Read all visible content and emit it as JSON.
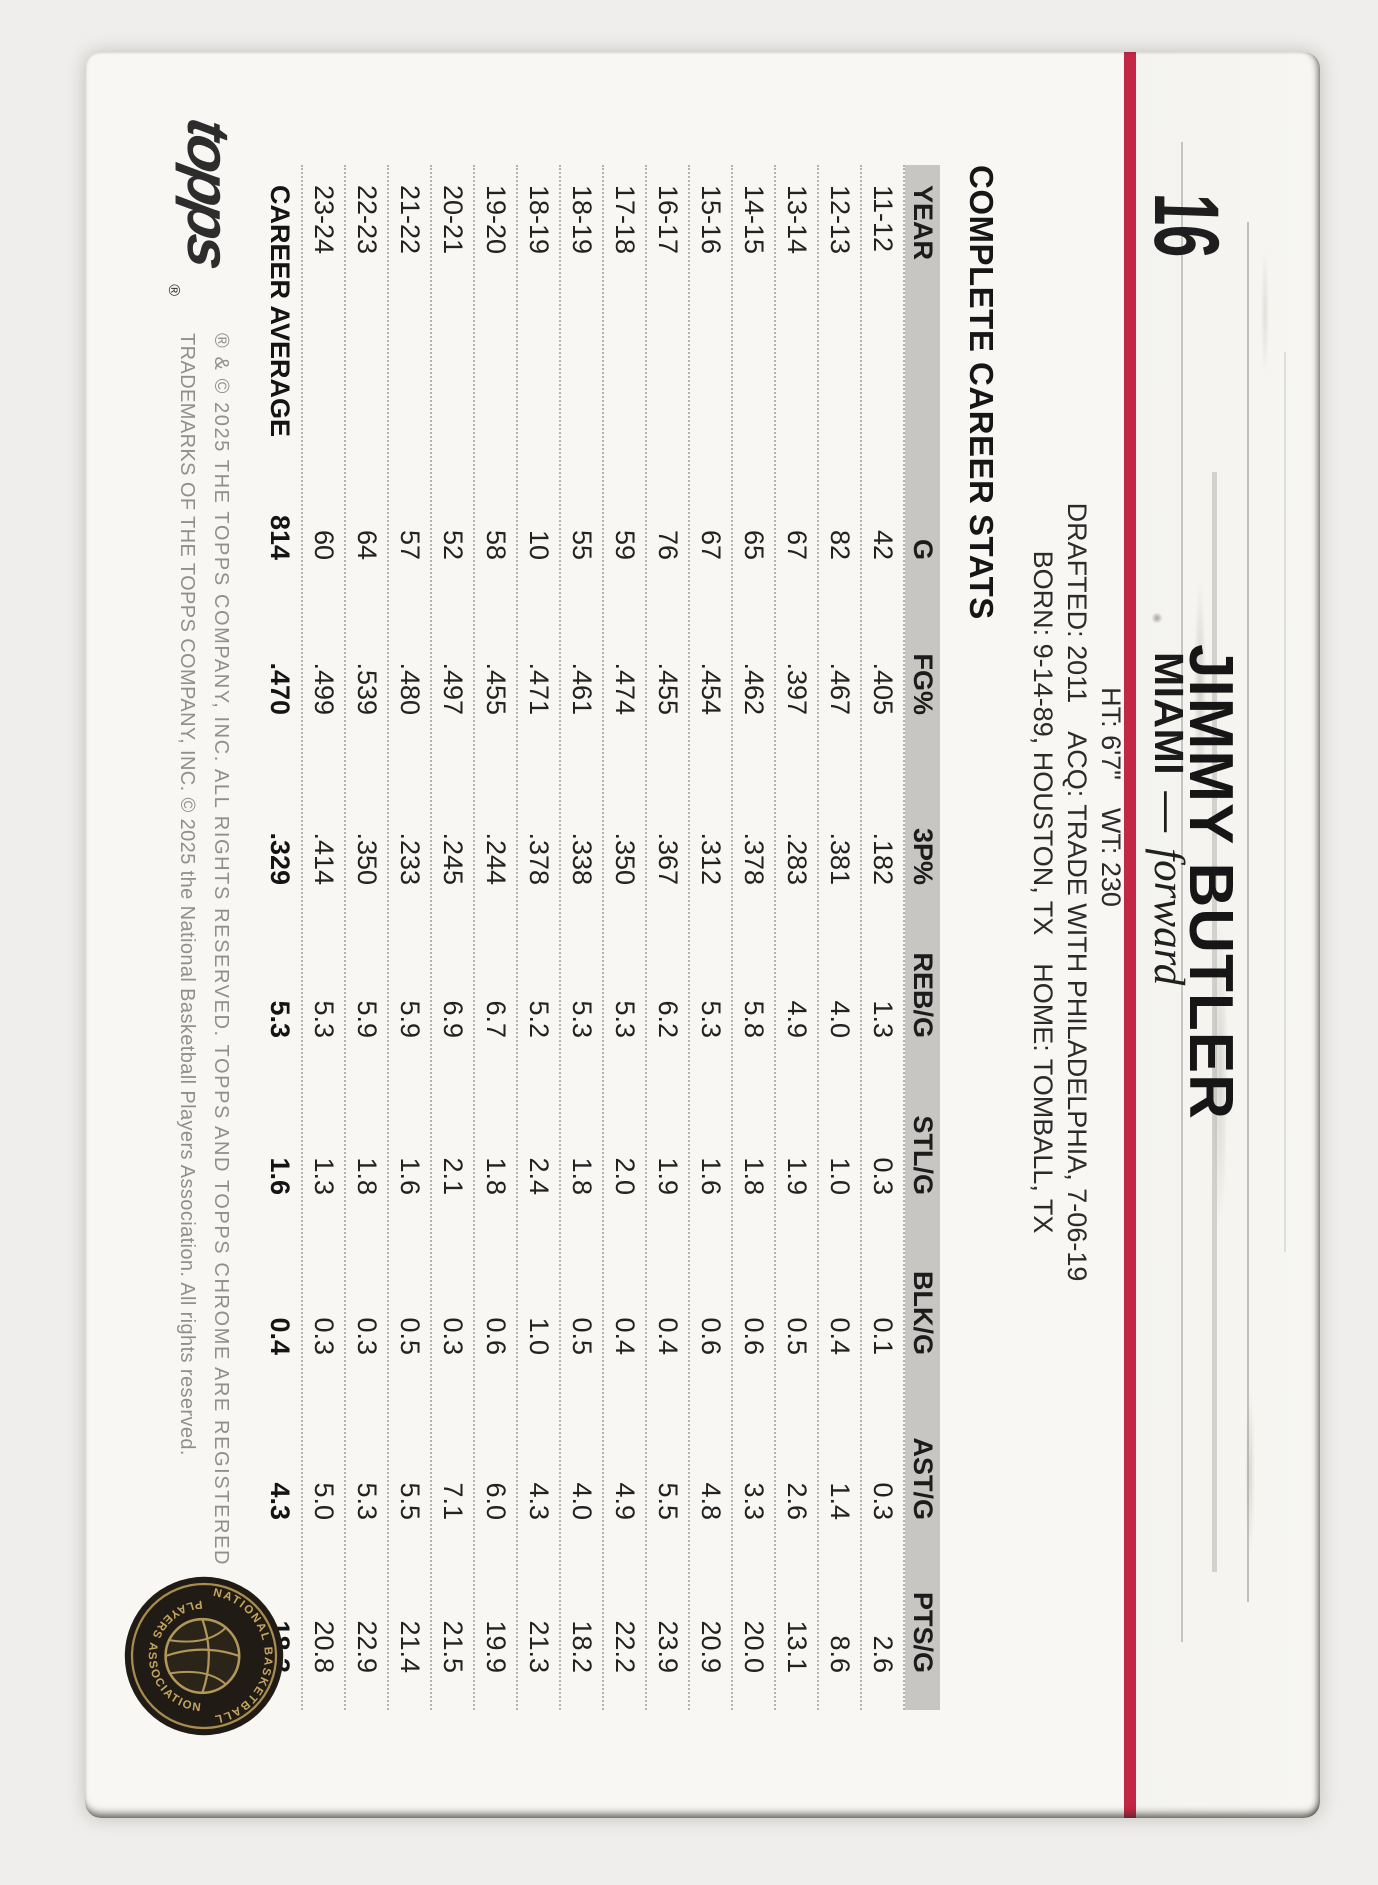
{
  "card": {
    "number": "16",
    "player_name": "JIMMY BUTLER",
    "team": "MIAMI",
    "team_separator": "—",
    "position": "forward",
    "bio": {
      "ht": "HT: 6'7\"",
      "wt": "WT: 230",
      "drafted": "DRAFTED: 2011",
      "acq": "ACQ: TRADE WITH PHILADELPHIA, 7-06-19",
      "born": "BORN: 9-14-89, HOUSTON, TX",
      "home": "HOME: TOMBALL, TX"
    },
    "stats_title": "COMPLETE CAREER STATS",
    "table": {
      "columns": [
        "YEAR",
        "G",
        "FG%",
        "3P%",
        "REB/G",
        "STL/G",
        "BLK/G",
        "AST/G",
        "PTS/G"
      ],
      "rows": [
        [
          "11-12",
          "42",
          ".405",
          ".182",
          "1.3",
          "0.3",
          "0.1",
          "0.3",
          "2.6"
        ],
        [
          "12-13",
          "82",
          ".467",
          ".381",
          "4.0",
          "1.0",
          "0.4",
          "1.4",
          "8.6"
        ],
        [
          "13-14",
          "67",
          ".397",
          ".283",
          "4.9",
          "1.9",
          "0.5",
          "2.6",
          "13.1"
        ],
        [
          "14-15",
          "65",
          ".462",
          ".378",
          "5.8",
          "1.8",
          "0.6",
          "3.3",
          "20.0"
        ],
        [
          "15-16",
          "67",
          ".454",
          ".312",
          "5.3",
          "1.6",
          "0.6",
          "4.8",
          "20.9"
        ],
        [
          "16-17",
          "76",
          ".455",
          ".367",
          "6.2",
          "1.9",
          "0.4",
          "5.5",
          "23.9"
        ],
        [
          "17-18",
          "59",
          ".474",
          ".350",
          "5.3",
          "2.0",
          "0.4",
          "4.9",
          "22.2"
        ],
        [
          "18-19",
          "55",
          ".461",
          ".338",
          "5.3",
          "1.8",
          "0.5",
          "4.0",
          "18.2"
        ],
        [
          "18-19",
          "10",
          ".471",
          ".378",
          "5.2",
          "2.4",
          "1.0",
          "4.3",
          "21.3"
        ],
        [
          "19-20",
          "58",
          ".455",
          ".244",
          "6.7",
          "1.8",
          "0.6",
          "6.0",
          "19.9"
        ],
        [
          "20-21",
          "52",
          ".497",
          ".245",
          "6.9",
          "2.1",
          "0.3",
          "7.1",
          "21.5"
        ],
        [
          "21-22",
          "57",
          ".480",
          ".233",
          "5.9",
          "1.6",
          "0.5",
          "5.5",
          "21.4"
        ],
        [
          "22-23",
          "64",
          ".539",
          ".350",
          "5.9",
          "1.8",
          "0.3",
          "5.3",
          "22.9"
        ],
        [
          "23-24",
          "60",
          ".499",
          ".414",
          "5.3",
          "1.3",
          "0.3",
          "5.0",
          "20.8"
        ]
      ],
      "career_row": [
        "CAREER AVERAGE",
        "814",
        ".470",
        ".329",
        "5.3",
        "1.6",
        "0.4",
        "4.3",
        "18.3"
      ]
    },
    "footer": {
      "copyright_line1": "® & © 2025 THE TOPPS COMPANY, INC. ALL RIGHTS RESERVED. TOPPS AND TOPPS CHROME ARE REGISTERED",
      "copyright_line2": "TRADEMARKS OF THE TOPPS COMPANY, INC. © 2025 the National Basketball Players Association. All rights reserved.",
      "topps_logo_text": "topps",
      "registered_symbol": "®",
      "nbpa_arc_top": "NATIONAL BASKETBALL",
      "nbpa_arc_bottom": "PLAYERS ASSOCIATION"
    },
    "colors": {
      "stripe_red": "#c22745",
      "header_gray": "#c7c6c3"
    }
  }
}
